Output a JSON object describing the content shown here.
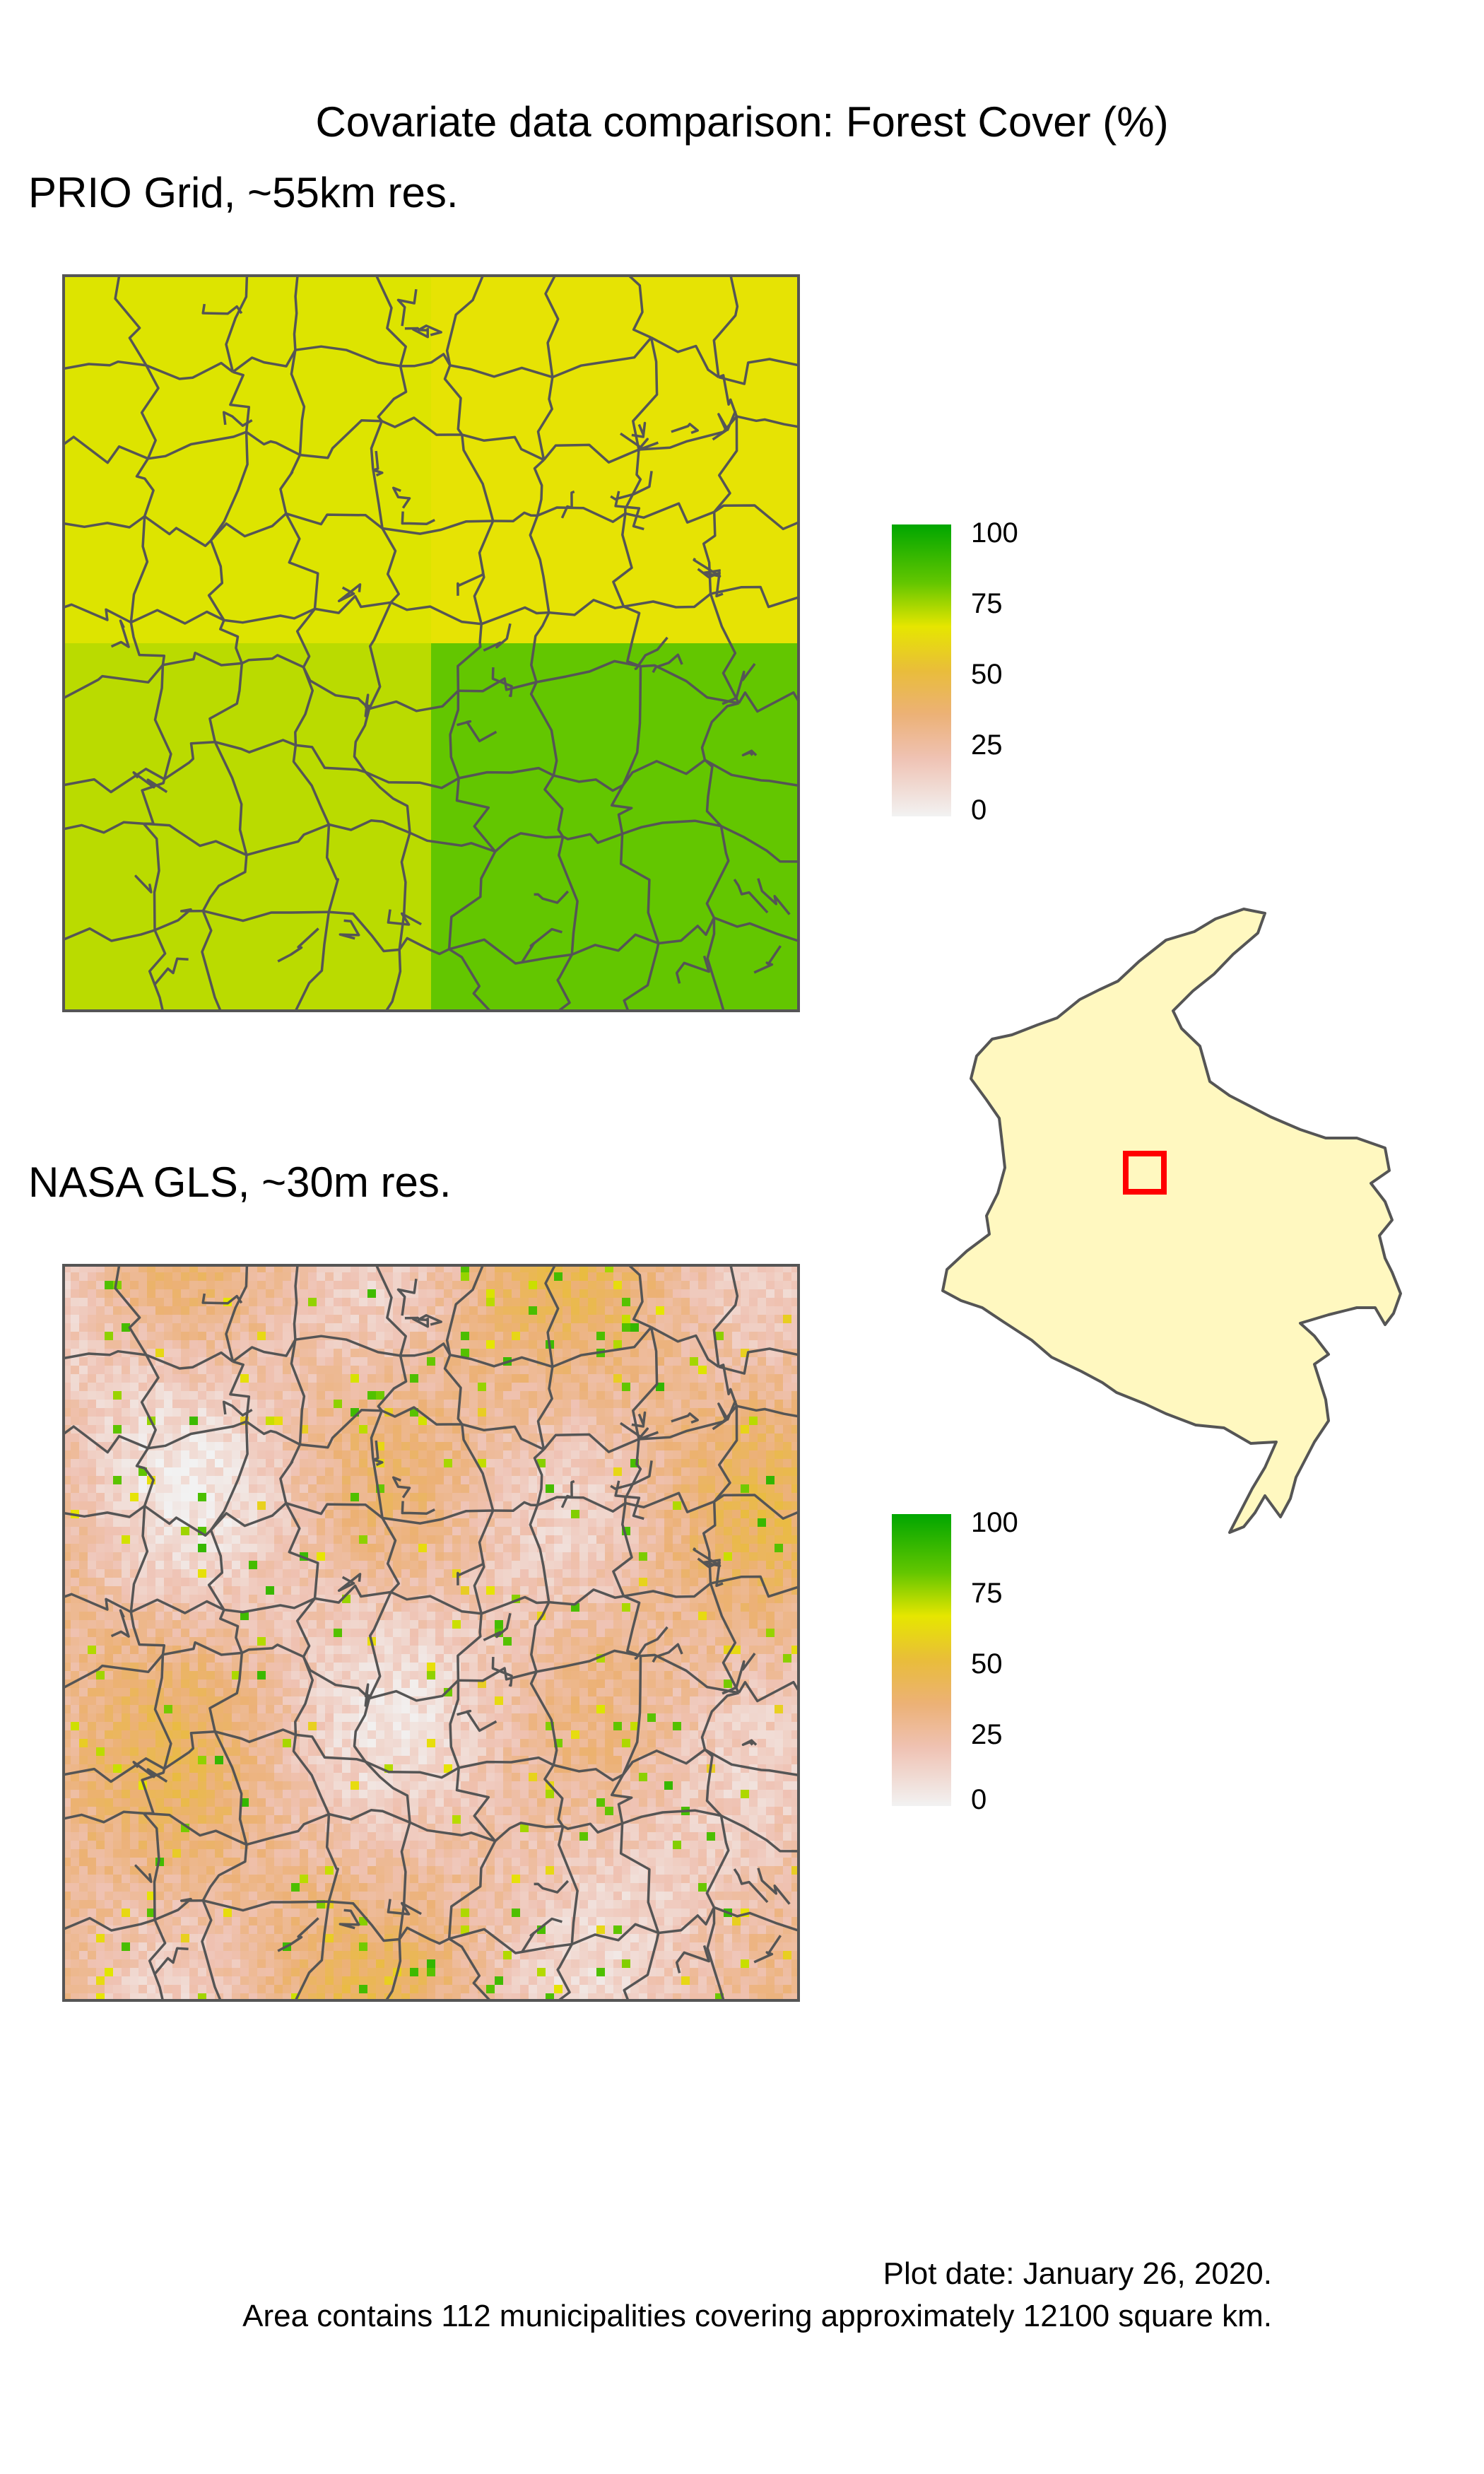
{
  "title": "Covariate data comparison: Forest Cover (%)",
  "panels": [
    {
      "subtitle": "PRIO Grid, ~55km res.",
      "dataset": "prio",
      "quadrant_forest_cover": {
        "nw": 66,
        "ne": 64,
        "sw": 70,
        "se": 80
      }
    },
    {
      "subtitle": "NASA GLS, ~30m res.",
      "dataset": "nasa"
    }
  ],
  "legend": {
    "labels": [
      "100",
      "75",
      "50",
      "25",
      "0"
    ],
    "colors": [
      "#00a600",
      "#63c600",
      "#e6e600",
      "#e9bd3a",
      "#ecb176",
      "#efc2b3",
      "#f2f2f2"
    ]
  },
  "locator": {
    "land_color": "#fff8c0",
    "border_color": "#555555",
    "highlight_color": "#ff0000"
  },
  "footer": {
    "line1": "Plot date: January 26, 2020.",
    "line2": "Area contains 112 municipalities covering approximately 12100 square km."
  }
}
